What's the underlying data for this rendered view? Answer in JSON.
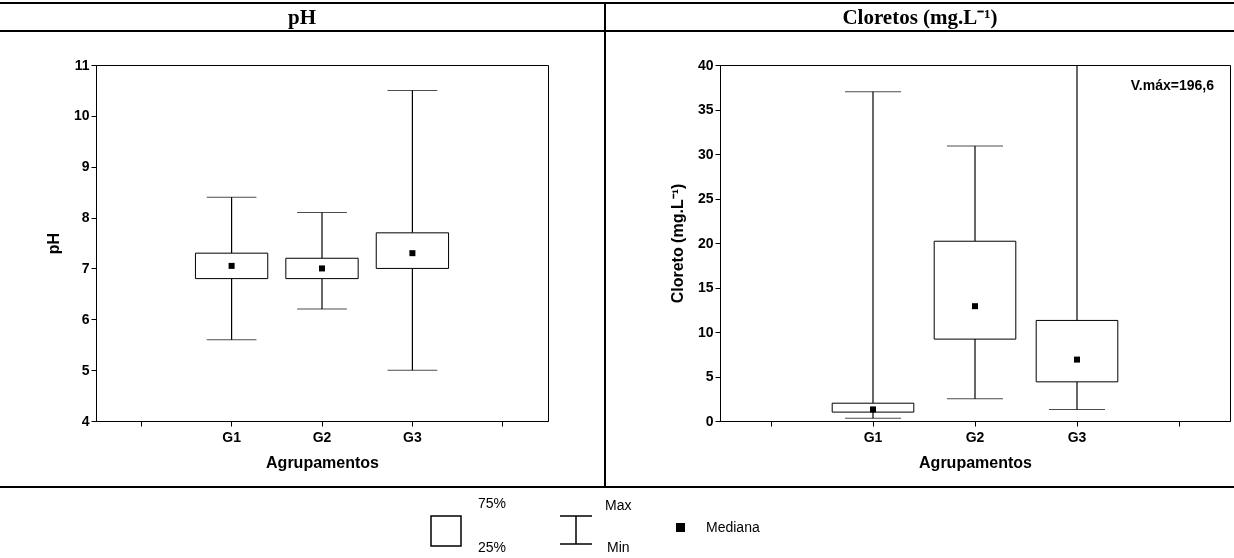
{
  "chart_data": [
    {
      "type": "box",
      "title": "pH",
      "xlabel": "Agrupamentos",
      "ylabel": "pH",
      "categories": [
        null,
        "G1",
        "G2",
        "G3",
        null
      ],
      "ylim": [
        4,
        11
      ],
      "yticks": [
        4,
        5,
        6,
        7,
        8,
        9,
        10,
        11
      ],
      "boxes": [
        null,
        {
          "low": 5.6,
          "q1": 6.8,
          "median": 7.05,
          "q3": 7.3,
          "high": 8.4
        },
        {
          "low": 6.2,
          "q1": 6.8,
          "median": 7.0,
          "q3": 7.2,
          "high": 8.1
        },
        {
          "low": 5.0,
          "q1": 7.0,
          "median": 7.3,
          "q3": 7.7,
          "high": 10.5
        },
        null
      ],
      "grid": false
    },
    {
      "type": "box",
      "title": "Cloretos (mg.L⁻¹)",
      "xlabel": "Agrupamentos",
      "ylabel": "Cloreto (mg.L⁻¹)",
      "categories": [
        null,
        "G1",
        "G2",
        "G3",
        null
      ],
      "ylim": [
        0,
        40
      ],
      "yticks": [
        0,
        5,
        10,
        15,
        20,
        25,
        30,
        35,
        40
      ],
      "boxes": [
        null,
        {
          "low": 0.3,
          "q1": 1.0,
          "median": 1.3,
          "q3": 2.0,
          "high": 37.0
        },
        {
          "low": 2.5,
          "q1": 9.2,
          "median": 12.9,
          "q3": 20.2,
          "high": 30.9
        },
        {
          "low": 1.3,
          "q1": 4.4,
          "median": 6.9,
          "q3": 11.3,
          "high": 196.6
        },
        null
      ],
      "annotations": [
        "V.máx=196,6"
      ],
      "grid": false
    },
    {
      "type": "other",
      "annotations": [
        "75%",
        "25%",
        "Max",
        "Min",
        "Mediana"
      ]
    }
  ]
}
